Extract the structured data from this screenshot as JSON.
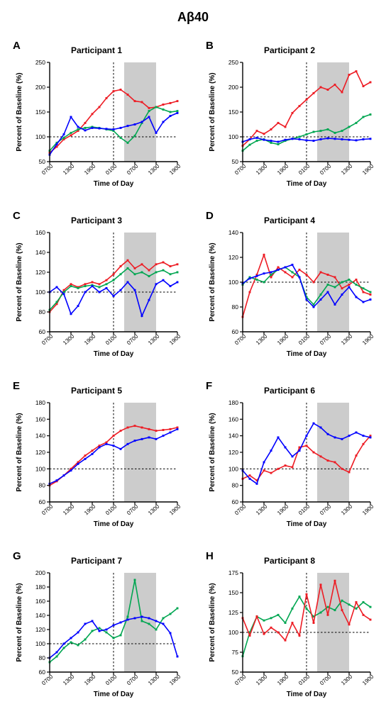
{
  "mainTitle": "Aβ40",
  "global": {
    "xCategories": [
      "0700",
      "1300",
      "1900",
      "0100",
      "0700",
      "1300",
      "1900"
    ],
    "xlabel": "Time of Day",
    "ylabel": "Percent of Baseline (%)",
    "vlineXindex": 3,
    "shadeStart": 3.5,
    "shadeEnd": 5.0,
    "background": "#ffffff",
    "shadeColor": "#cccccc",
    "axisColor": "#000000",
    "dashColor": "#000000",
    "tickFontSize": 8.5,
    "labelFontSize": 10,
    "titleFontSize": 12,
    "letterFontSize": 15,
    "seriesColors": {
      "red": "#ed1c24",
      "blue": "#0000ff",
      "green": "#00a651"
    },
    "markerSize": 2.4,
    "lineWidth": 1.6
  },
  "panels": [
    {
      "letter": "A",
      "title": "Participant 1",
      "ylim": [
        50,
        250
      ],
      "ytickStep": 50,
      "hline": 100,
      "series": [
        {
          "color": "red",
          "y": [
            68,
            80,
            95,
            103,
            112,
            128,
            146,
            160,
            178,
            192,
            195,
            185,
            172,
            170,
            158,
            160,
            165,
            168,
            172
          ]
        },
        {
          "color": "green",
          "y": [
            72,
            88,
            98,
            108,
            115,
            118,
            120,
            118,
            115,
            112,
            98,
            88,
            102,
            128,
            152,
            160,
            155,
            150,
            152
          ]
        },
        {
          "color": "blue",
          "y": [
            64,
            85,
            105,
            140,
            120,
            113,
            118,
            117,
            116,
            115,
            118,
            122,
            125,
            130,
            140,
            108,
            130,
            142,
            148
          ]
        }
      ]
    },
    {
      "letter": "B",
      "title": "Participant 2",
      "ylim": [
        50,
        250
      ],
      "ytickStep": 50,
      "hline": 100,
      "series": [
        {
          "color": "red",
          "y": [
            82,
            95,
            112,
            106,
            115,
            128,
            120,
            148,
            162,
            175,
            188,
            200,
            195,
            205,
            190,
            225,
            232,
            202,
            210
          ]
        },
        {
          "color": "green",
          "y": [
            72,
            84,
            92,
            95,
            88,
            85,
            92,
            96,
            100,
            105,
            110,
            112,
            115,
            108,
            112,
            120,
            128,
            140,
            145
          ]
        },
        {
          "color": "blue",
          "y": [
            90,
            95,
            98,
            94,
            92,
            90,
            94,
            96,
            95,
            93,
            92,
            95,
            97,
            96,
            95,
            94,
            93,
            95,
            96
          ]
        }
      ]
    },
    {
      "letter": "C",
      "title": "Participant 3",
      "ylim": [
        60,
        160
      ],
      "ytickStep": 20,
      "hline": 100,
      "series": [
        {
          "color": "red",
          "y": [
            80,
            88,
            102,
            108,
            105,
            108,
            110,
            108,
            112,
            118,
            126,
            132,
            124,
            128,
            122,
            128,
            130,
            126,
            128
          ]
        },
        {
          "color": "green",
          "y": [
            82,
            90,
            100,
            106,
            104,
            106,
            107,
            105,
            108,
            112,
            118,
            124,
            118,
            120,
            116,
            120,
            122,
            118,
            120
          ]
        },
        {
          "color": "blue",
          "y": [
            100,
            105,
            98,
            78,
            86,
            100,
            106,
            100,
            104,
            96,
            102,
            110,
            102,
            76,
            92,
            108,
            112,
            106,
            110
          ]
        }
      ]
    },
    {
      "letter": "D",
      "title": "Participant 4",
      "ylim": [
        60,
        140
      ],
      "ytickStep": 20,
      "hline": 100,
      "series": [
        {
          "color": "red",
          "y": [
            72,
            92,
            106,
            122,
            104,
            112,
            108,
            104,
            110,
            106,
            100,
            108,
            106,
            104,
            95,
            98,
            102,
            92,
            90
          ]
        },
        {
          "color": "green",
          "y": [
            98,
            104,
            102,
            100,
            106,
            110,
            112,
            108,
            104,
            88,
            82,
            90,
            98,
            96,
            100,
            102,
            98,
            95,
            92
          ]
        },
        {
          "color": "blue",
          "y": [
            99,
            103,
            105,
            107,
            108,
            110,
            112,
            114,
            104,
            86,
            80,
            86,
            92,
            82,
            90,
            96,
            88,
            84,
            86
          ]
        }
      ]
    },
    {
      "letter": "E",
      "title": "Participant 5",
      "ylim": [
        60,
        180
      ],
      "ytickStep": 20,
      "hline": 100,
      "series": [
        {
          "color": "red",
          "y": [
            80,
            85,
            92,
            100,
            108,
            116,
            122,
            128,
            132,
            140,
            146,
            150,
            152,
            150,
            148,
            146,
            147,
            148,
            150
          ]
        },
        {
          "color": "blue",
          "y": [
            82,
            86,
            92,
            98,
            106,
            112,
            118,
            126,
            130,
            128,
            124,
            130,
            134,
            136,
            138,
            136,
            140,
            144,
            148
          ]
        }
      ]
    },
    {
      "letter": "F",
      "title": "Participant 6",
      "ylim": [
        60,
        180
      ],
      "ytickStep": 20,
      "hline": 100,
      "series": [
        {
          "color": "red",
          "y": [
            88,
            92,
            86,
            98,
            95,
            100,
            104,
            102,
            126,
            128,
            120,
            115,
            110,
            108,
            100,
            96,
            116,
            130,
            140
          ]
        },
        {
          "color": "blue",
          "y": [
            98,
            88,
            82,
            108,
            122,
            138,
            126,
            115,
            122,
            140,
            155,
            150,
            142,
            138,
            136,
            140,
            144,
            140,
            138
          ]
        }
      ]
    },
    {
      "letter": "G",
      "title": "Participant 7",
      "ylim": [
        60,
        200
      ],
      "ytickStep": 20,
      "hline": 100,
      "series": [
        {
          "color": "green",
          "y": [
            74,
            82,
            94,
            102,
            98,
            106,
            118,
            122,
            116,
            108,
            112,
            138,
            190,
            132,
            128,
            120,
            136,
            142,
            150
          ]
        },
        {
          "color": "blue",
          "y": [
            80,
            88,
            100,
            108,
            116,
            128,
            132,
            118,
            120,
            126,
            130,
            134,
            136,
            138,
            136,
            132,
            128,
            115,
            82
          ]
        }
      ]
    },
    {
      "letter": "H",
      "title": "Participant 8",
      "ylim": [
        50,
        175
      ],
      "ytickStep": 25,
      "hline": 100,
      "series": [
        {
          "color": "green",
          "y": [
            70,
            100,
            120,
            115,
            118,
            122,
            112,
            130,
            145,
            130,
            120,
            125,
            132,
            128,
            140,
            135,
            130,
            138,
            132
          ]
        },
        {
          "color": "red",
          "y": [
            118,
            96,
            120,
            98,
            106,
            100,
            90,
            112,
            96,
            148,
            112,
            160,
            122,
            165,
            128,
            110,
            138,
            122,
            116
          ]
        }
      ]
    }
  ]
}
